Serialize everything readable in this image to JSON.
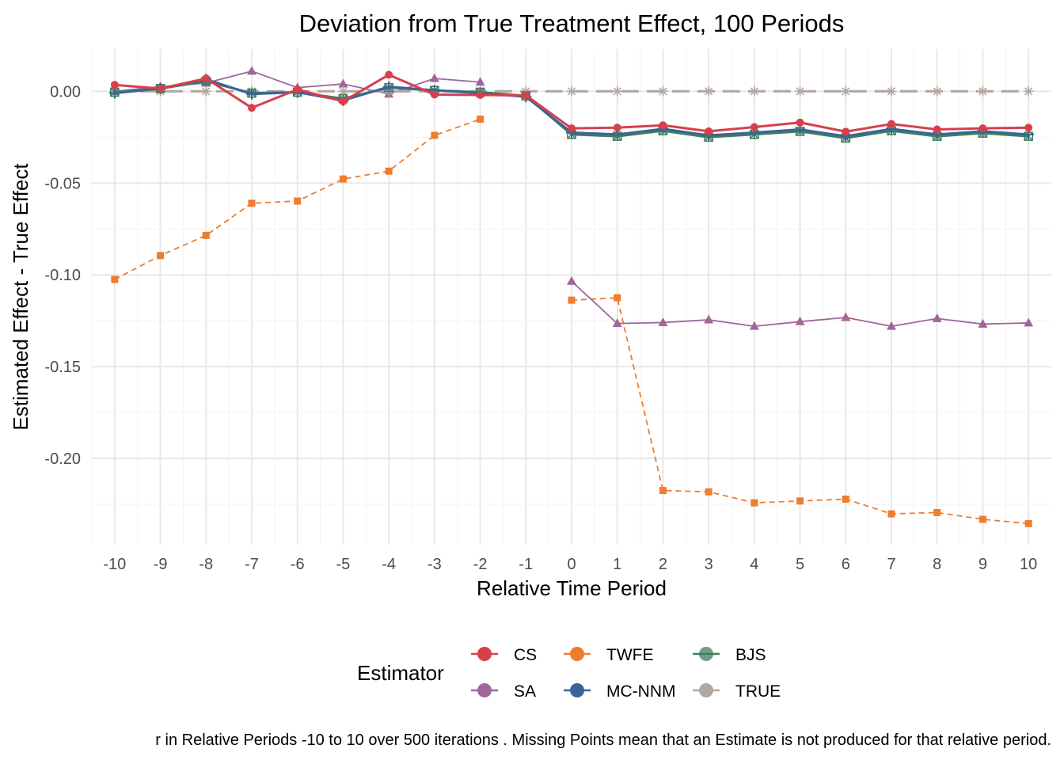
{
  "chart_data": {
    "type": "line",
    "title": "Deviation from True Treatment Effect, 100 Periods",
    "xlabel": "Relative Time Period",
    "ylabel": "Estimated Effect - True Effect",
    "xlim": [
      -10.5,
      10.5
    ],
    "ylim": [
      -0.247,
      0.023
    ],
    "x_ticks": [
      -10,
      -9,
      -8,
      -7,
      -6,
      -5,
      -4,
      -3,
      -2,
      -1,
      0,
      1,
      2,
      3,
      4,
      5,
      6,
      7,
      8,
      9,
      10
    ],
    "y_ticks": [
      0.0,
      -0.05,
      -0.1,
      -0.15,
      -0.2
    ],
    "y_tick_labels": [
      "0.00",
      "-0.05",
      "-0.10",
      "-0.15",
      "-0.20"
    ],
    "grid": true,
    "legend": {
      "title": "Estimator",
      "placement": "bottom",
      "entries": [
        "CS",
        "SA",
        "TWFE",
        "MC-NNM",
        "BJS",
        "TRUE"
      ]
    },
    "caption": "r in Relative Periods -10 to 10 over 500 iterations . Missing Points mean that an Estimate is not produced for that relative period.",
    "series": [
      {
        "name": "TWFE",
        "color": "#EE7D2E",
        "marker": "square",
        "dash": "dashed",
        "segments": [
          {
            "x": [
              -10,
              -9,
              -8,
              -7,
              -6,
              -5,
              -4,
              -3,
              -2
            ],
            "y": [
              -0.1025,
              -0.0895,
              -0.0785,
              -0.061,
              -0.0598,
              -0.0478,
              -0.0435,
              -0.024,
              -0.0152
            ]
          },
          {
            "x": [
              0,
              1,
              2,
              3,
              4,
              5,
              6,
              7,
              8,
              9,
              10
            ],
            "y": [
              -0.1138,
              -0.1125,
              -0.2175,
              -0.2182,
              -0.2242,
              -0.2232,
              -0.2222,
              -0.2302,
              -0.2295,
              -0.2332,
              -0.2355
            ]
          }
        ]
      },
      {
        "name": "SA",
        "color": "#A1669A",
        "marker": "triangle",
        "dash": "solid",
        "segments": [
          {
            "x": [
              -10,
              -9,
              -8,
              -7,
              -6,
              -5,
              -4,
              -3,
              -2
            ],
            "y": [
              0.0,
              0.0025,
              0.0045,
              0.011,
              0.002,
              0.004,
              -0.0015,
              0.007,
              0.005
            ]
          },
          {
            "x": [
              0,
              1,
              2,
              3,
              4,
              5,
              6,
              7,
              8,
              9,
              10
            ],
            "y": [
              -0.1035,
              -0.1265,
              -0.126,
              -0.1245,
              -0.128,
              -0.1255,
              -0.1232,
              -0.128,
              -0.1238,
              -0.1268,
              -0.1262
            ]
          }
        ]
      },
      {
        "name": "TRUE",
        "color": "#B2A8A2",
        "marker": "asterisk",
        "dash": "longdash",
        "segments": [
          {
            "x": [
              -10,
              -9,
              -8,
              -7,
              -6,
              -5,
              -4,
              -3,
              -2,
              -1,
              0,
              1,
              2,
              3,
              4,
              5,
              6,
              7,
              8,
              9,
              10
            ],
            "y": [
              0,
              0,
              0,
              0,
              0,
              0,
              0,
              0,
              0,
              0,
              0,
              0,
              0,
              0,
              0,
              0,
              0,
              0,
              0,
              0,
              0
            ]
          }
        ]
      },
      {
        "name": "BJS",
        "color": "#3F7F5A",
        "marker": "crosssquare",
        "dash": "solid",
        "segments": [
          {
            "x": [
              -10,
              -9,
              -8,
              -7,
              -6,
              -5,
              -4,
              -3,
              -2,
              -1,
              0,
              1,
              2,
              3,
              4,
              5,
              6,
              7,
              8,
              9,
              10
            ],
            "y": [
              -0.0005,
              0.0015,
              0.0055,
              -0.001,
              -0.0005,
              -0.004,
              0.002,
              0.0005,
              -0.0005,
              -0.0025,
              -0.0235,
              -0.0245,
              -0.0215,
              -0.025,
              -0.0235,
              -0.0218,
              -0.0255,
              -0.0215,
              -0.0245,
              -0.0228,
              -0.0245
            ]
          }
        ]
      },
      {
        "name": "MC-NNM",
        "color": "#3C6398",
        "marker": "plus",
        "dash": "solid",
        "segments": [
          {
            "x": [
              -10,
              -9,
              -8,
              -7,
              -6,
              -5,
              -4,
              -3,
              -2,
              -1,
              0,
              1,
              2,
              3,
              4,
              5,
              6,
              7,
              8,
              9,
              10
            ],
            "y": [
              -0.001,
              0.0015,
              0.0065,
              -0.0015,
              -0.0005,
              -0.005,
              0.0025,
              0.0005,
              -0.001,
              -0.003,
              -0.0225,
              -0.0235,
              -0.0205,
              -0.024,
              -0.0225,
              -0.0208,
              -0.0245,
              -0.0205,
              -0.0235,
              -0.0218,
              -0.0235
            ]
          }
        ]
      },
      {
        "name": "CS",
        "color": "#D7404B",
        "marker": "circle",
        "dash": "solid",
        "segments": [
          {
            "x": [
              -10,
              -9,
              -8,
              -7,
              -6,
              -5,
              -4,
              -3,
              -2,
              -1,
              0,
              1,
              2,
              3,
              4,
              5,
              6,
              7,
              8,
              9,
              10
            ],
            "y": [
              0.0035,
              0.0015,
              0.007,
              -0.009,
              0.001,
              -0.0055,
              0.009,
              -0.0018,
              -0.002,
              -0.0022,
              -0.0202,
              -0.0198,
              -0.0185,
              -0.0218,
              -0.0195,
              -0.017,
              -0.022,
              -0.0178,
              -0.0208,
              -0.0202,
              -0.0198
            ]
          }
        ]
      }
    ]
  }
}
